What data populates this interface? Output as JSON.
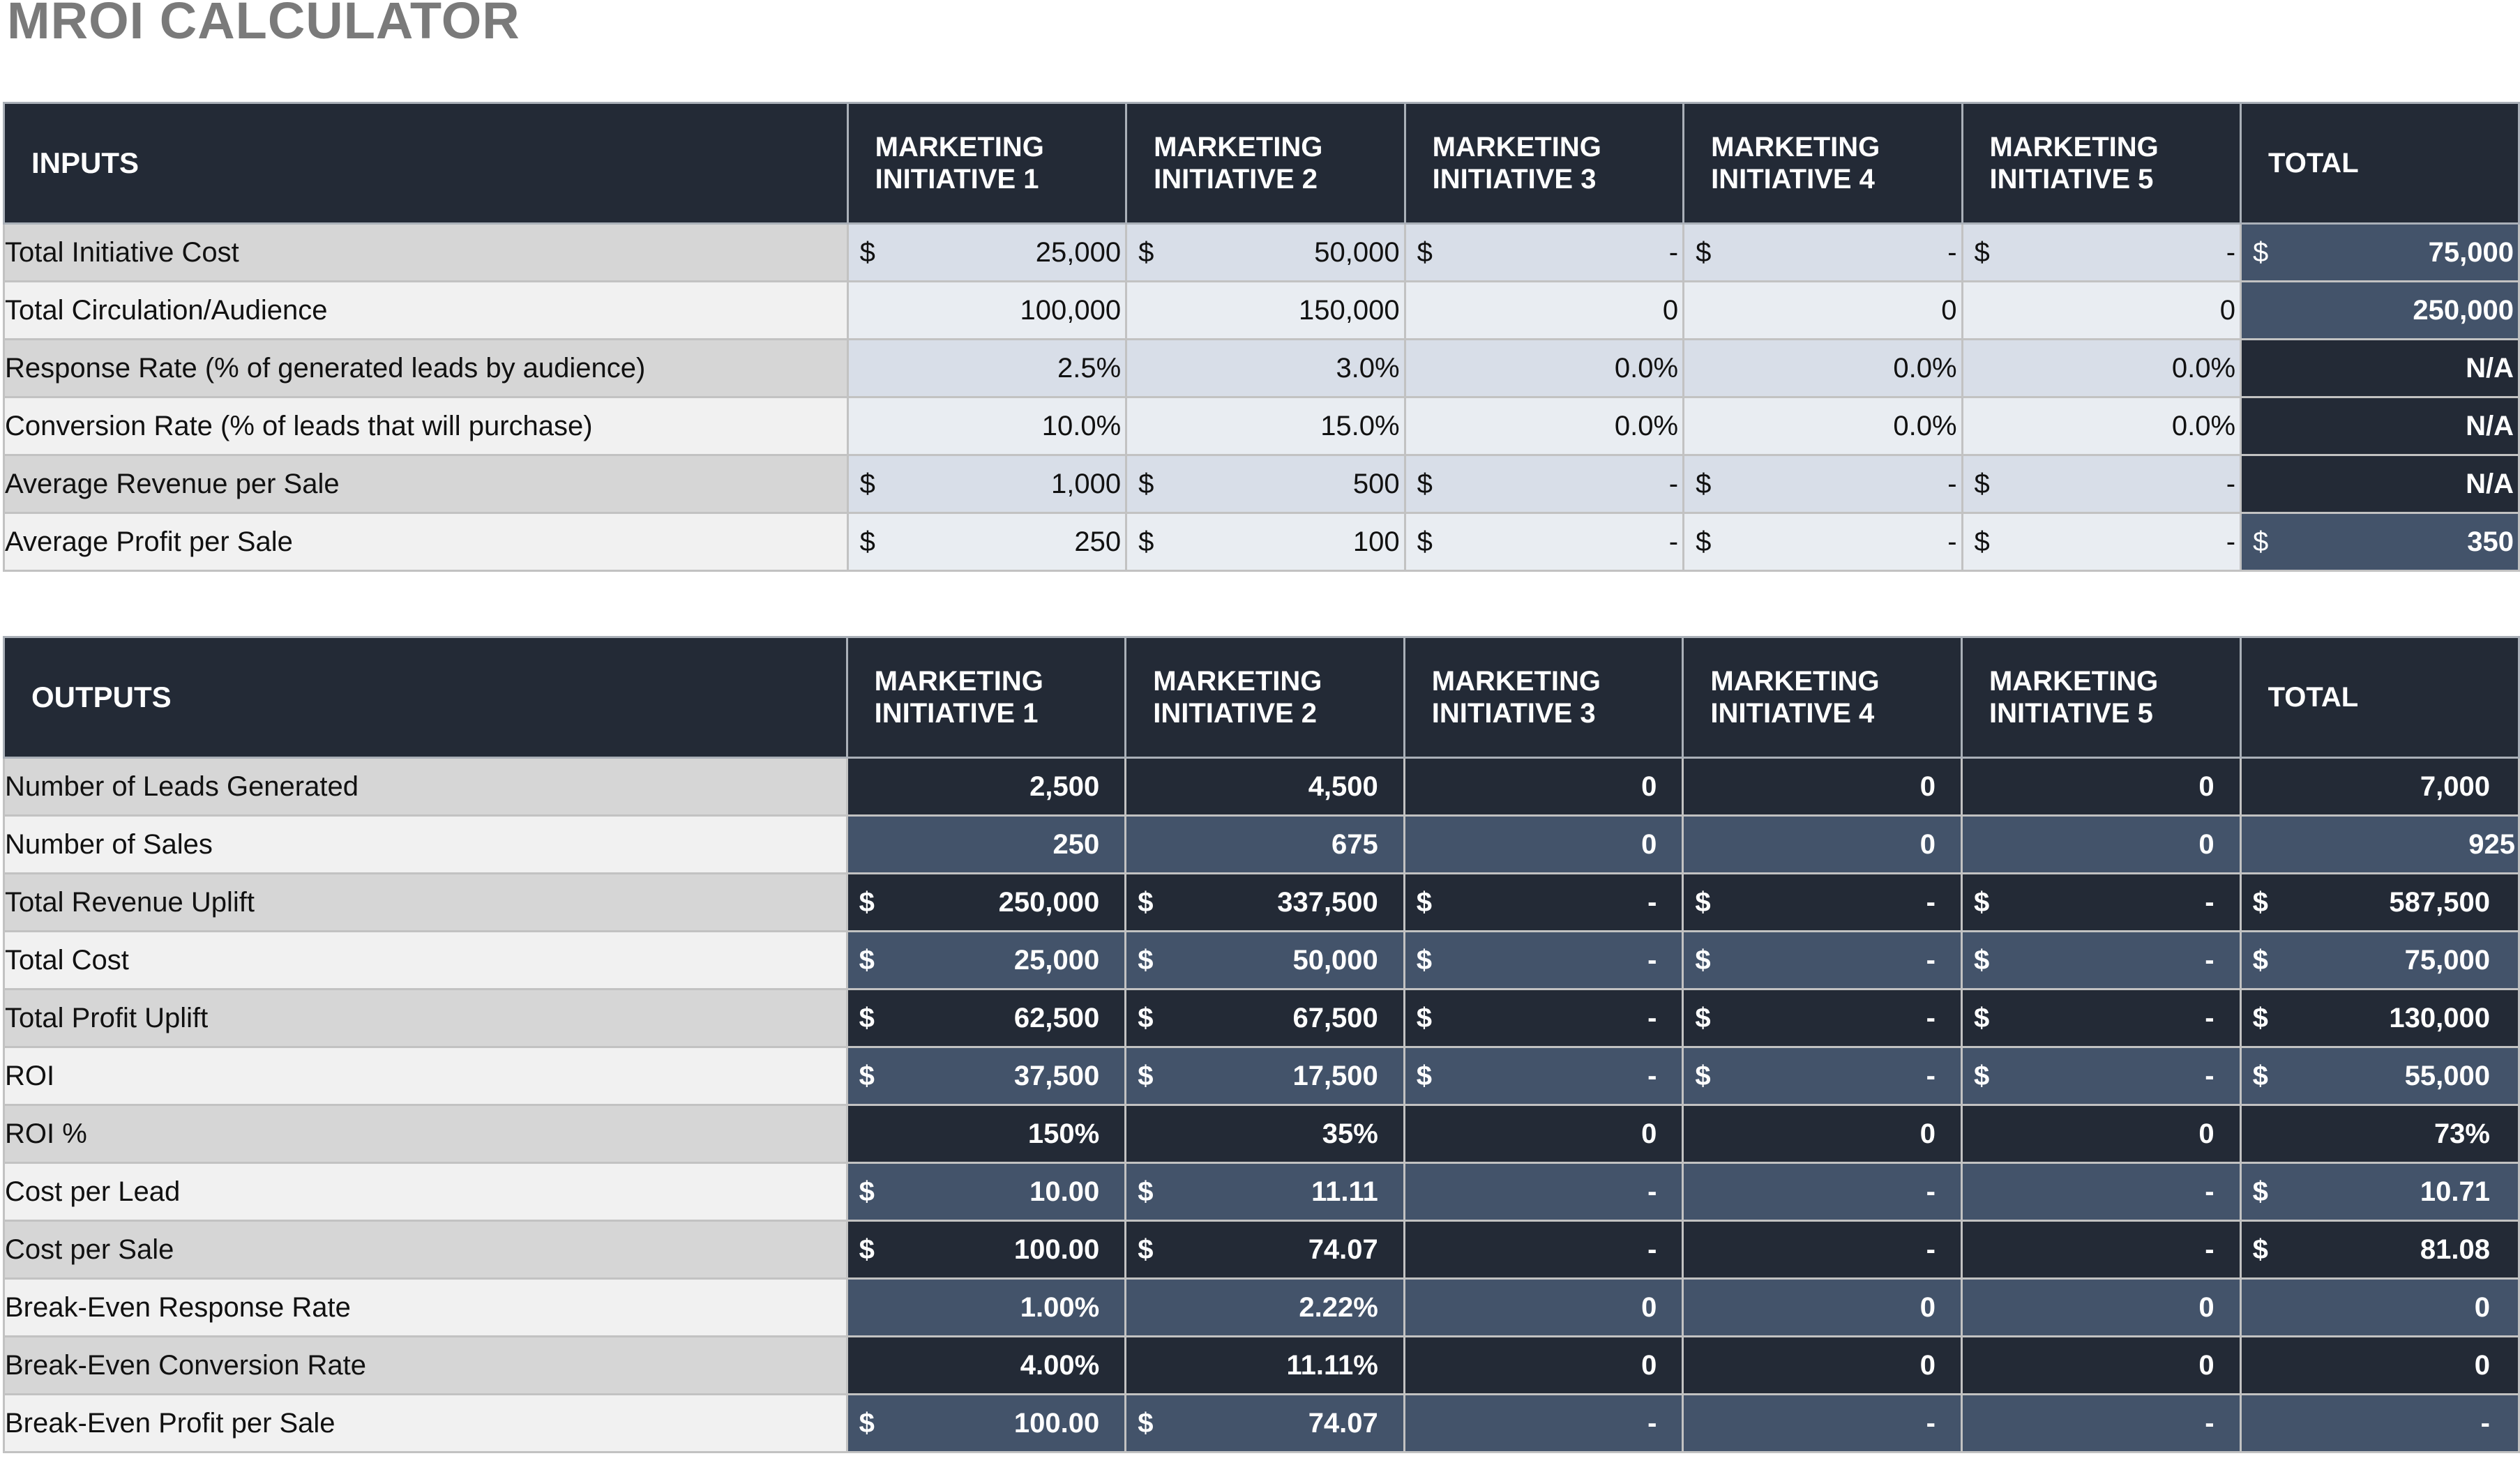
{
  "title": "MROI CALCULATOR",
  "inputs": {
    "section_label": "INPUTS",
    "columns": [
      {
        "line1": "MARKETING",
        "line2": "INITIATIVE 1"
      },
      {
        "line1": "MARKETING",
        "line2": "INITIATIVE 2"
      },
      {
        "line1": "MARKETING",
        "line2": "INITIATIVE 3"
      },
      {
        "line1": "MARKETING",
        "line2": "INITIATIVE 4"
      },
      {
        "line1": "MARKETING",
        "line2": "INITIATIVE 5"
      }
    ],
    "total_label": "TOTAL",
    "rows": [
      {
        "label": "Total Initiative Cost",
        "values": [
          {
            "cur": "$",
            "val": "25,000"
          },
          {
            "cur": "$",
            "val": "50,000"
          },
          {
            "cur": "$",
            "val": "-"
          },
          {
            "cur": "$",
            "val": "-"
          },
          {
            "cur": "$",
            "val": "-"
          }
        ],
        "total": {
          "cur": "$",
          "val": "75,000"
        }
      },
      {
        "label": "Total Circulation/Audience",
        "values": [
          {
            "cur": "",
            "val": "100,000"
          },
          {
            "cur": "",
            "val": "150,000"
          },
          {
            "cur": "",
            "val": "0"
          },
          {
            "cur": "",
            "val": "0"
          },
          {
            "cur": "",
            "val": "0"
          }
        ],
        "total": {
          "cur": "",
          "val": "250,000"
        }
      },
      {
        "label": "Response Rate (% of generated leads by audience)",
        "values": [
          {
            "cur": "",
            "val": "2.5%"
          },
          {
            "cur": "",
            "val": "3.0%"
          },
          {
            "cur": "",
            "val": "0.0%"
          },
          {
            "cur": "",
            "val": "0.0%"
          },
          {
            "cur": "",
            "val": "0.0%"
          }
        ],
        "total": {
          "cur": "",
          "val": "N/A"
        }
      },
      {
        "label": "Conversion Rate (% of leads that will purchase)",
        "values": [
          {
            "cur": "",
            "val": "10.0%"
          },
          {
            "cur": "",
            "val": "15.0%"
          },
          {
            "cur": "",
            "val": "0.0%"
          },
          {
            "cur": "",
            "val": "0.0%"
          },
          {
            "cur": "",
            "val": "0.0%"
          }
        ],
        "total": {
          "cur": "",
          "val": "N/A"
        }
      },
      {
        "label": "Average Revenue per Sale",
        "values": [
          {
            "cur": "$",
            "val": "1,000"
          },
          {
            "cur": "$",
            "val": "500"
          },
          {
            "cur": "$",
            "val": "-"
          },
          {
            "cur": "$",
            "val": "-"
          },
          {
            "cur": "$",
            "val": "-"
          }
        ],
        "total": {
          "cur": "",
          "val": "N/A"
        }
      },
      {
        "label": "Average Profit per Sale",
        "values": [
          {
            "cur": "$",
            "val": "250"
          },
          {
            "cur": "$",
            "val": "100"
          },
          {
            "cur": "$",
            "val": "-"
          },
          {
            "cur": "$",
            "val": "-"
          },
          {
            "cur": "$",
            "val": "-"
          }
        ],
        "total": {
          "cur": "$",
          "val": "350"
        }
      }
    ]
  },
  "outputs": {
    "section_label": "OUTPUTS",
    "columns": [
      {
        "line1": "MARKETING",
        "line2": "INITIATIVE 1"
      },
      {
        "line1": "MARKETING",
        "line2": "INITIATIVE 2"
      },
      {
        "line1": "MARKETING",
        "line2": "INITIATIVE 3"
      },
      {
        "line1": "MARKETING",
        "line2": "INITIATIVE 4"
      },
      {
        "line1": "MARKETING",
        "line2": "INITIATIVE 5"
      }
    ],
    "total_label": "TOTAL",
    "rows": [
      {
        "label": "Number of Leads Generated",
        "values": [
          {
            "cur": "",
            "val": "2,500"
          },
          {
            "cur": "",
            "val": "4,500"
          },
          {
            "cur": "",
            "val": "0"
          },
          {
            "cur": "",
            "val": "0"
          },
          {
            "cur": "",
            "val": "0"
          }
        ],
        "total": {
          "cur": "",
          "val": "7,000"
        }
      },
      {
        "label": "Number of Sales",
        "values": [
          {
            "cur": "",
            "val": "250"
          },
          {
            "cur": "",
            "val": "675"
          },
          {
            "cur": "",
            "val": "0"
          },
          {
            "cur": "",
            "val": "0"
          },
          {
            "cur": "",
            "val": "0"
          }
        ],
        "total": {
          "cur": "",
          "val": "925"
        }
      },
      {
        "label": "Total Revenue Uplift",
        "values": [
          {
            "cur": "$",
            "val": "250,000"
          },
          {
            "cur": "$",
            "val": "337,500"
          },
          {
            "cur": "$",
            "val": "-"
          },
          {
            "cur": "$",
            "val": "-"
          },
          {
            "cur": "$",
            "val": "-"
          }
        ],
        "total": {
          "cur": "$",
          "val": "587,500"
        }
      },
      {
        "label": "Total Cost",
        "values": [
          {
            "cur": "$",
            "val": "25,000"
          },
          {
            "cur": "$",
            "val": "50,000"
          },
          {
            "cur": "$",
            "val": "-"
          },
          {
            "cur": "$",
            "val": "-"
          },
          {
            "cur": "$",
            "val": "-"
          }
        ],
        "total": {
          "cur": "$",
          "val": "75,000"
        }
      },
      {
        "label": "Total Profit Uplift",
        "values": [
          {
            "cur": "$",
            "val": "62,500"
          },
          {
            "cur": "$",
            "val": "67,500"
          },
          {
            "cur": "$",
            "val": "-"
          },
          {
            "cur": "$",
            "val": "-"
          },
          {
            "cur": "$",
            "val": "-"
          }
        ],
        "total": {
          "cur": "$",
          "val": "130,000"
        }
      },
      {
        "label": "ROI",
        "values": [
          {
            "cur": "$",
            "val": "37,500"
          },
          {
            "cur": "$",
            "val": "17,500"
          },
          {
            "cur": "$",
            "val": "-"
          },
          {
            "cur": "$",
            "val": "-"
          },
          {
            "cur": "$",
            "val": "-"
          }
        ],
        "total": {
          "cur": "$",
          "val": "55,000"
        }
      },
      {
        "label": "ROI %",
        "values": [
          {
            "cur": "",
            "val": "150%"
          },
          {
            "cur": "",
            "val": "35%"
          },
          {
            "cur": "",
            "val": "0"
          },
          {
            "cur": "",
            "val": "0"
          },
          {
            "cur": "",
            "val": "0"
          }
        ],
        "total": {
          "cur": "",
          "val": "73%"
        }
      },
      {
        "label": "Cost per Lead",
        "values": [
          {
            "cur": "$",
            "val": "10.00"
          },
          {
            "cur": "$",
            "val": "11.11"
          },
          {
            "cur": "",
            "val": "-"
          },
          {
            "cur": "",
            "val": "-"
          },
          {
            "cur": "",
            "val": "-"
          }
        ],
        "total": {
          "cur": "$",
          "val": "10.71"
        }
      },
      {
        "label": "Cost per Sale",
        "values": [
          {
            "cur": "$",
            "val": "100.00"
          },
          {
            "cur": "$",
            "val": "74.07"
          },
          {
            "cur": "",
            "val": "-"
          },
          {
            "cur": "",
            "val": "-"
          },
          {
            "cur": "",
            "val": "-"
          }
        ],
        "total": {
          "cur": "$",
          "val": "81.08"
        }
      },
      {
        "label": "Break-Even Response Rate",
        "values": [
          {
            "cur": "",
            "val": "1.00%"
          },
          {
            "cur": "",
            "val": "2.22%"
          },
          {
            "cur": "",
            "val": "0"
          },
          {
            "cur": "",
            "val": "0"
          },
          {
            "cur": "",
            "val": "0"
          }
        ],
        "total": {
          "cur": "",
          "val": "0"
        }
      },
      {
        "label": "Break-Even Conversion Rate",
        "values": [
          {
            "cur": "",
            "val": "4.00%"
          },
          {
            "cur": "",
            "val": "11.11%"
          },
          {
            "cur": "",
            "val": "0"
          },
          {
            "cur": "",
            "val": "0"
          },
          {
            "cur": "",
            "val": "0"
          }
        ],
        "total": {
          "cur": "",
          "val": "0"
        }
      },
      {
        "label": "Break-Even Profit per Sale",
        "values": [
          {
            "cur": "$",
            "val": "100.00"
          },
          {
            "cur": "$",
            "val": "74.07"
          },
          {
            "cur": "",
            "val": "-"
          },
          {
            "cur": "",
            "val": "-"
          },
          {
            "cur": "",
            "val": "-"
          }
        ],
        "total": {
          "cur": "",
          "val": "-"
        }
      }
    ]
  },
  "colors": {
    "header_bg": "#232a36",
    "accent_blue": "#43536a",
    "label_odd": "#d6d6d6",
    "label_even": "#f1f1f1",
    "input_odd": "#d8dee8",
    "input_even": "#e9edf2",
    "title": "#7a7a7a"
  }
}
